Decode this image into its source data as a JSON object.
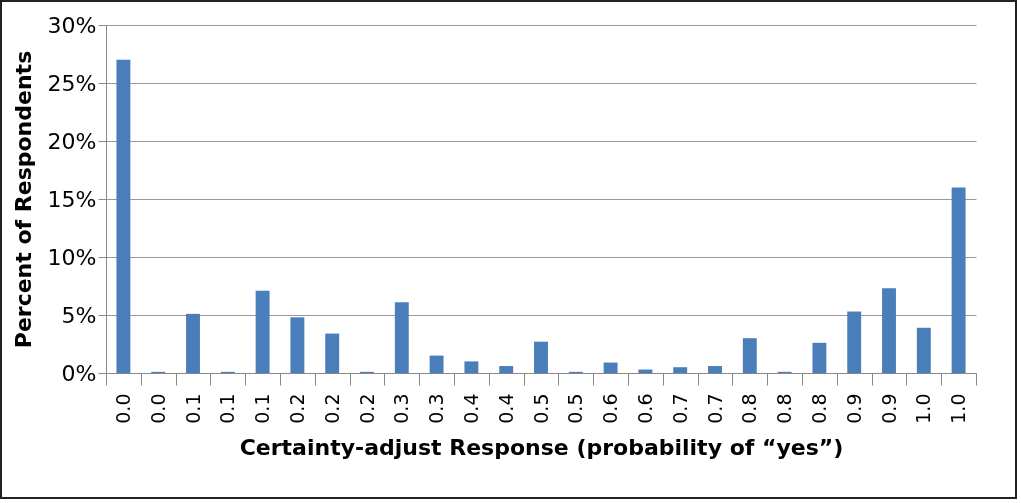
{
  "chart_data": {
    "type": "bar",
    "xlabel": "Certainty-adjust Response (probability of “yes”)",
    "ylabel": "Percent of Respondents",
    "categories": [
      "0.0",
      "0.0",
      "0.1",
      "0.1",
      "0.1",
      "0.2",
      "0.2",
      "0.2",
      "0.3",
      "0.3",
      "0.4",
      "0.4",
      "0.5",
      "0.5",
      "0.6",
      "0.6",
      "0.7",
      "0.7",
      "0.8",
      "0.8",
      "0.8",
      "0.9",
      "0.9",
      "1.0",
      "1.0"
    ],
    "values": [
      27.0,
      0.1,
      5.1,
      0.1,
      7.1,
      4.8,
      3.4,
      0.1,
      6.1,
      1.5,
      1.0,
      0.6,
      2.7,
      0.1,
      0.9,
      0.3,
      0.5,
      0.6,
      3.0,
      0.1,
      2.6,
      5.3,
      7.3,
      3.9,
      16.0
    ],
    "color": "#4a7ebb",
    "ylim": [
      0,
      30
    ],
    "yticks": [
      {
        "value": 0,
        "label": "0%"
      },
      {
        "value": 5,
        "label": "5%"
      },
      {
        "value": 10,
        "label": "10%"
      },
      {
        "value": 15,
        "label": "15%"
      },
      {
        "value": 20,
        "label": "20%"
      },
      {
        "value": 25,
        "label": "25%"
      },
      {
        "value": 30,
        "label": "30%"
      }
    ],
    "grid": "y"
  }
}
